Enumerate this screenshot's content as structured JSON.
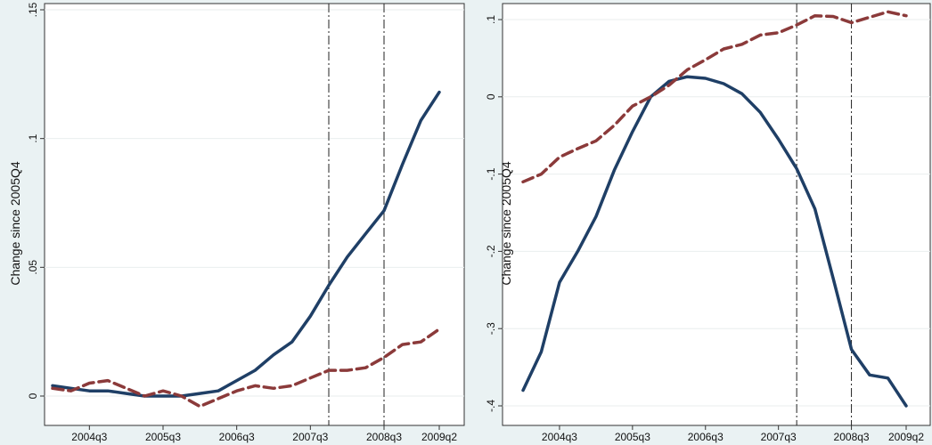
{
  "chart_data": [
    {
      "type": "line",
      "ylabel": "Change since 2005Q4",
      "x_tick_labels": [
        "2004q3",
        "2005q3",
        "2006q3",
        "2007q3",
        "2008q3",
        "2009q2"
      ],
      "x_tick_positions": [
        2004.5,
        2005.5,
        2006.5,
        2007.5,
        2008.5,
        2009.25
      ],
      "y_ticks": [
        0,
        0.05,
        0.1,
        0.15
      ],
      "y_tick_labels": [
        "0",
        ".05",
        ".1",
        ".15"
      ],
      "xlim": [
        2004.0,
        2009.25
      ],
      "ylim": [
        0,
        0.15
      ],
      "vlines": [
        2007.75,
        2008.5
      ],
      "grid": true,
      "x": [
        2004.0,
        2004.25,
        2004.5,
        2004.75,
        2005.0,
        2005.25,
        2005.5,
        2005.75,
        2006.0,
        2006.25,
        2006.5,
        2006.75,
        2007.0,
        2007.25,
        2007.5,
        2007.75,
        2008.0,
        2008.25,
        2008.5,
        2008.75,
        2009.0,
        2009.25
      ],
      "series": [
        {
          "color": "#1f3f66",
          "dash": "solid",
          "values": [
            0.004,
            0.003,
            0.002,
            0.002,
            0.001,
            0.0,
            0.0,
            0.0,
            0.001,
            0.002,
            0.006,
            0.01,
            0.016,
            0.021,
            0.031,
            0.043,
            0.054,
            0.063,
            0.072,
            0.09,
            0.107,
            0.118
          ]
        },
        {
          "color": "#8b3a3a",
          "dash": "dashed",
          "values": [
            0.003,
            0.002,
            0.005,
            0.006,
            0.003,
            0.0,
            0.002,
            0.0,
            -0.004,
            -0.001,
            0.002,
            0.004,
            0.003,
            0.004,
            0.007,
            0.01,
            0.01,
            0.011,
            0.015,
            0.02,
            0.021,
            0.026
          ]
        }
      ]
    },
    {
      "type": "line",
      "ylabel": "Change since 2005Q4",
      "x_tick_labels": [
        "2004q3",
        "2005q3",
        "2006q3",
        "2007q3",
        "2008q3",
        "2009q2"
      ],
      "x_tick_positions": [
        2004.5,
        2005.5,
        2006.5,
        2007.5,
        2008.5,
        2009.25
      ],
      "y_ticks": [
        -0.4,
        -0.3,
        -0.2,
        -0.1,
        0,
        0.1
      ],
      "y_tick_labels": [
        "-.4",
        "-.3",
        "-.2",
        "-.1",
        "0",
        ".1"
      ],
      "xlim": [
        2004.0,
        2009.25
      ],
      "ylim": [
        -0.4,
        0.1
      ],
      "vlines": [
        2007.75,
        2008.5
      ],
      "grid": true,
      "x": [
        2004.0,
        2004.25,
        2004.5,
        2004.75,
        2005.0,
        2005.25,
        2005.5,
        2005.75,
        2006.0,
        2006.25,
        2006.5,
        2006.75,
        2007.0,
        2007.25,
        2007.5,
        2007.75,
        2008.0,
        2008.25,
        2008.5,
        2008.75,
        2009.0,
        2009.25
      ],
      "series": [
        {
          "color": "#1f3f66",
          "dash": "solid",
          "values": [
            -0.38,
            -0.33,
            -0.24,
            -0.2,
            -0.155,
            -0.095,
            -0.045,
            0.0,
            0.02,
            0.026,
            0.024,
            0.017,
            0.004,
            -0.02,
            -0.055,
            -0.093,
            -0.145,
            -0.235,
            -0.327,
            -0.36,
            -0.364,
            -0.4
          ]
        },
        {
          "color": "#8b3a3a",
          "dash": "dashed",
          "values": [
            -0.11,
            -0.1,
            -0.078,
            -0.067,
            -0.057,
            -0.037,
            -0.012,
            0.0,
            0.015,
            0.035,
            0.048,
            0.062,
            0.068,
            0.08,
            0.083,
            0.093,
            0.105,
            0.104,
            0.096,
            0.103,
            0.11,
            0.105
          ]
        }
      ]
    }
  ]
}
